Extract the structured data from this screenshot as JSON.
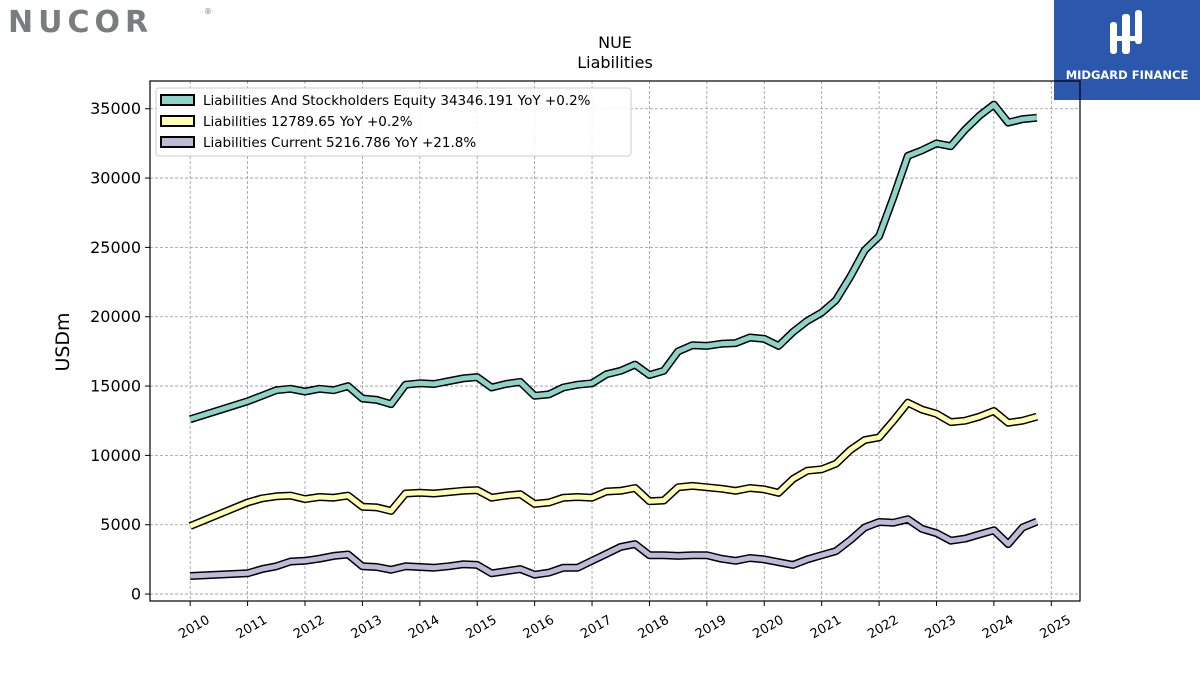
{
  "logos": {
    "left": "NUCOR",
    "right": "MIDGARD FINANCE"
  },
  "chart_data": {
    "type": "line",
    "title": "NUE",
    "subtitle": "Liabilities",
    "ylabel": "USDm",
    "xlabel": "",
    "xlim": [
      2009.3,
      2025.5
    ],
    "ylim": [
      -500,
      37000
    ],
    "yticks": [
      0,
      5000,
      10000,
      15000,
      20000,
      25000,
      30000,
      35000
    ],
    "xticks": [
      2010,
      2011,
      2012,
      2013,
      2014,
      2015,
      2016,
      2017,
      2018,
      2019,
      2020,
      2021,
      2022,
      2023,
      2024,
      2025
    ],
    "grid": true,
    "legend_position": "top-left",
    "series": [
      {
        "name": "Liabilities And Stockholders Equity",
        "legend_label": "Liabilities And Stockholders Equity  34346.191 YoY +0.2%",
        "color": "#8dd3c7",
        "x": [
          2010.0,
          2011.0,
          2011.25,
          2011.5,
          2011.75,
          2012.0,
          2012.25,
          2012.5,
          2012.75,
          2013.0,
          2013.25,
          2013.5,
          2013.75,
          2014.0,
          2014.25,
          2014.5,
          2014.75,
          2015.0,
          2015.25,
          2015.5,
          2015.75,
          2016.0,
          2016.25,
          2016.5,
          2016.75,
          2017.0,
          2017.25,
          2017.5,
          2017.75,
          2018.0,
          2018.25,
          2018.5,
          2018.75,
          2019.0,
          2019.25,
          2019.5,
          2019.75,
          2020.0,
          2020.25,
          2020.5,
          2020.75,
          2021.0,
          2021.25,
          2021.5,
          2021.75,
          2022.0,
          2022.25,
          2022.5,
          2022.75,
          2023.0,
          2023.25,
          2023.5,
          2023.75,
          2024.0,
          2024.25,
          2024.5,
          2024.75
        ],
        "values": [
          12600,
          13900,
          14300,
          14700,
          14800,
          14600,
          14800,
          14700,
          15000,
          14100,
          14000,
          13700,
          15100,
          15200,
          15150,
          15350,
          15550,
          15650,
          14900,
          15150,
          15300,
          14300,
          14400,
          14900,
          15100,
          15200,
          15850,
          16100,
          16550,
          15800,
          16100,
          17500,
          17950,
          17900,
          18050,
          18100,
          18500,
          18400,
          17900,
          18900,
          19700,
          20300,
          21200,
          22900,
          24800,
          25800,
          28600,
          31600,
          32000,
          32500,
          32300,
          33500,
          34500,
          35300,
          34000,
          34250,
          34346
        ]
      },
      {
        "name": "Liabilities",
        "legend_label": "Liabilities  12789.65 YoY +0.2%",
        "color": "#ffffb3",
        "x": [
          2010.0,
          2011.0,
          2011.25,
          2011.5,
          2011.75,
          2012.0,
          2012.25,
          2012.5,
          2012.75,
          2013.0,
          2013.25,
          2013.5,
          2013.75,
          2014.0,
          2014.25,
          2014.5,
          2014.75,
          2015.0,
          2015.25,
          2015.5,
          2015.75,
          2016.0,
          2016.25,
          2016.5,
          2016.75,
          2017.0,
          2017.25,
          2017.5,
          2017.75,
          2018.0,
          2018.25,
          2018.5,
          2018.75,
          2019.0,
          2019.25,
          2019.5,
          2019.75,
          2020.0,
          2020.25,
          2020.5,
          2020.75,
          2021.0,
          2021.25,
          2021.5,
          2021.75,
          2022.0,
          2022.25,
          2022.5,
          2022.75,
          2023.0,
          2023.25,
          2023.5,
          2023.75,
          2024.0,
          2024.25,
          2024.5,
          2024.75
        ],
        "values": [
          4900,
          6600,
          6900,
          7050,
          7100,
          6850,
          7000,
          6950,
          7100,
          6300,
          6250,
          6000,
          7250,
          7300,
          7250,
          7350,
          7450,
          7500,
          6950,
          7100,
          7200,
          6500,
          6600,
          6950,
          7000,
          6950,
          7400,
          7450,
          7650,
          6700,
          6750,
          7700,
          7800,
          7700,
          7600,
          7450,
          7650,
          7550,
          7300,
          8300,
          8900,
          9000,
          9400,
          10400,
          11100,
          11300,
          12500,
          13800,
          13300,
          13000,
          12400,
          12500,
          12800,
          13200,
          12350,
          12500,
          12790
        ]
      },
      {
        "name": "Liabilities Current",
        "legend_label": "Liabilities Current  5216.786 YoY +21.8%",
        "color": "#bebada",
        "x": [
          2010.0,
          2011.0,
          2011.25,
          2011.5,
          2011.75,
          2012.0,
          2012.25,
          2012.5,
          2012.75,
          2013.0,
          2013.25,
          2013.5,
          2013.75,
          2014.0,
          2014.25,
          2014.5,
          2014.75,
          2015.0,
          2015.25,
          2015.5,
          2015.75,
          2016.0,
          2016.25,
          2016.5,
          2016.75,
          2017.0,
          2017.25,
          2017.5,
          2017.75,
          2018.0,
          2018.25,
          2018.5,
          2018.75,
          2019.0,
          2019.25,
          2019.5,
          2019.75,
          2020.0,
          2020.25,
          2020.5,
          2020.75,
          2021.0,
          2021.25,
          2021.5,
          2021.75,
          2022.0,
          2022.25,
          2022.5,
          2022.75,
          2023.0,
          2023.25,
          2023.5,
          2023.75,
          2024.0,
          2024.25,
          2024.5,
          2024.75
        ],
        "values": [
          1300,
          1500,
          1800,
          2000,
          2350,
          2400,
          2550,
          2750,
          2850,
          2000,
          1950,
          1750,
          2000,
          1950,
          1900,
          2000,
          2150,
          2100,
          1500,
          1650,
          1800,
          1400,
          1550,
          1900,
          1900,
          2400,
          2900,
          3400,
          3600,
          2800,
          2800,
          2750,
          2800,
          2800,
          2550,
          2400,
          2600,
          2500,
          2300,
          2100,
          2500,
          2800,
          3100,
          3900,
          4800,
          5200,
          5150,
          5400,
          4700,
          4400,
          3850,
          4000,
          4300,
          4600,
          3600,
          4800,
          5217
        ]
      }
    ]
  }
}
